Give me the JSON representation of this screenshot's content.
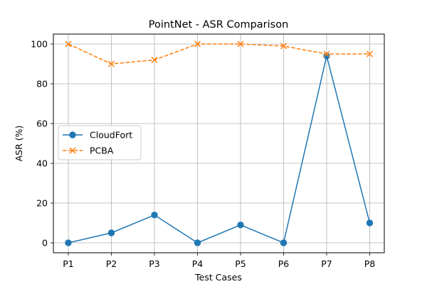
{
  "chart_data": {
    "type": "line",
    "title": "PointNet - ASR Comparison",
    "xlabel": "Test Cases",
    "ylabel": "ASR (%)",
    "categories": [
      "P1",
      "P2",
      "P3",
      "P4",
      "P5",
      "P6",
      "P7",
      "P8"
    ],
    "y_ticks": [
      0,
      20,
      40,
      60,
      80,
      100
    ],
    "ylim": [
      -5,
      105
    ],
    "grid": true,
    "legend_position": "center-left",
    "series": [
      {
        "name": "CloudFort",
        "values": [
          0,
          5,
          14,
          0,
          9,
          0,
          94,
          10
        ],
        "color": "#1f77b4",
        "marker": "circle",
        "line_style": "solid"
      },
      {
        "name": "PCBA",
        "values": [
          100,
          90,
          92,
          100,
          100,
          99,
          95,
          95
        ],
        "color": "#ff7f0e",
        "marker": "x",
        "line_style": "dashed"
      }
    ]
  }
}
